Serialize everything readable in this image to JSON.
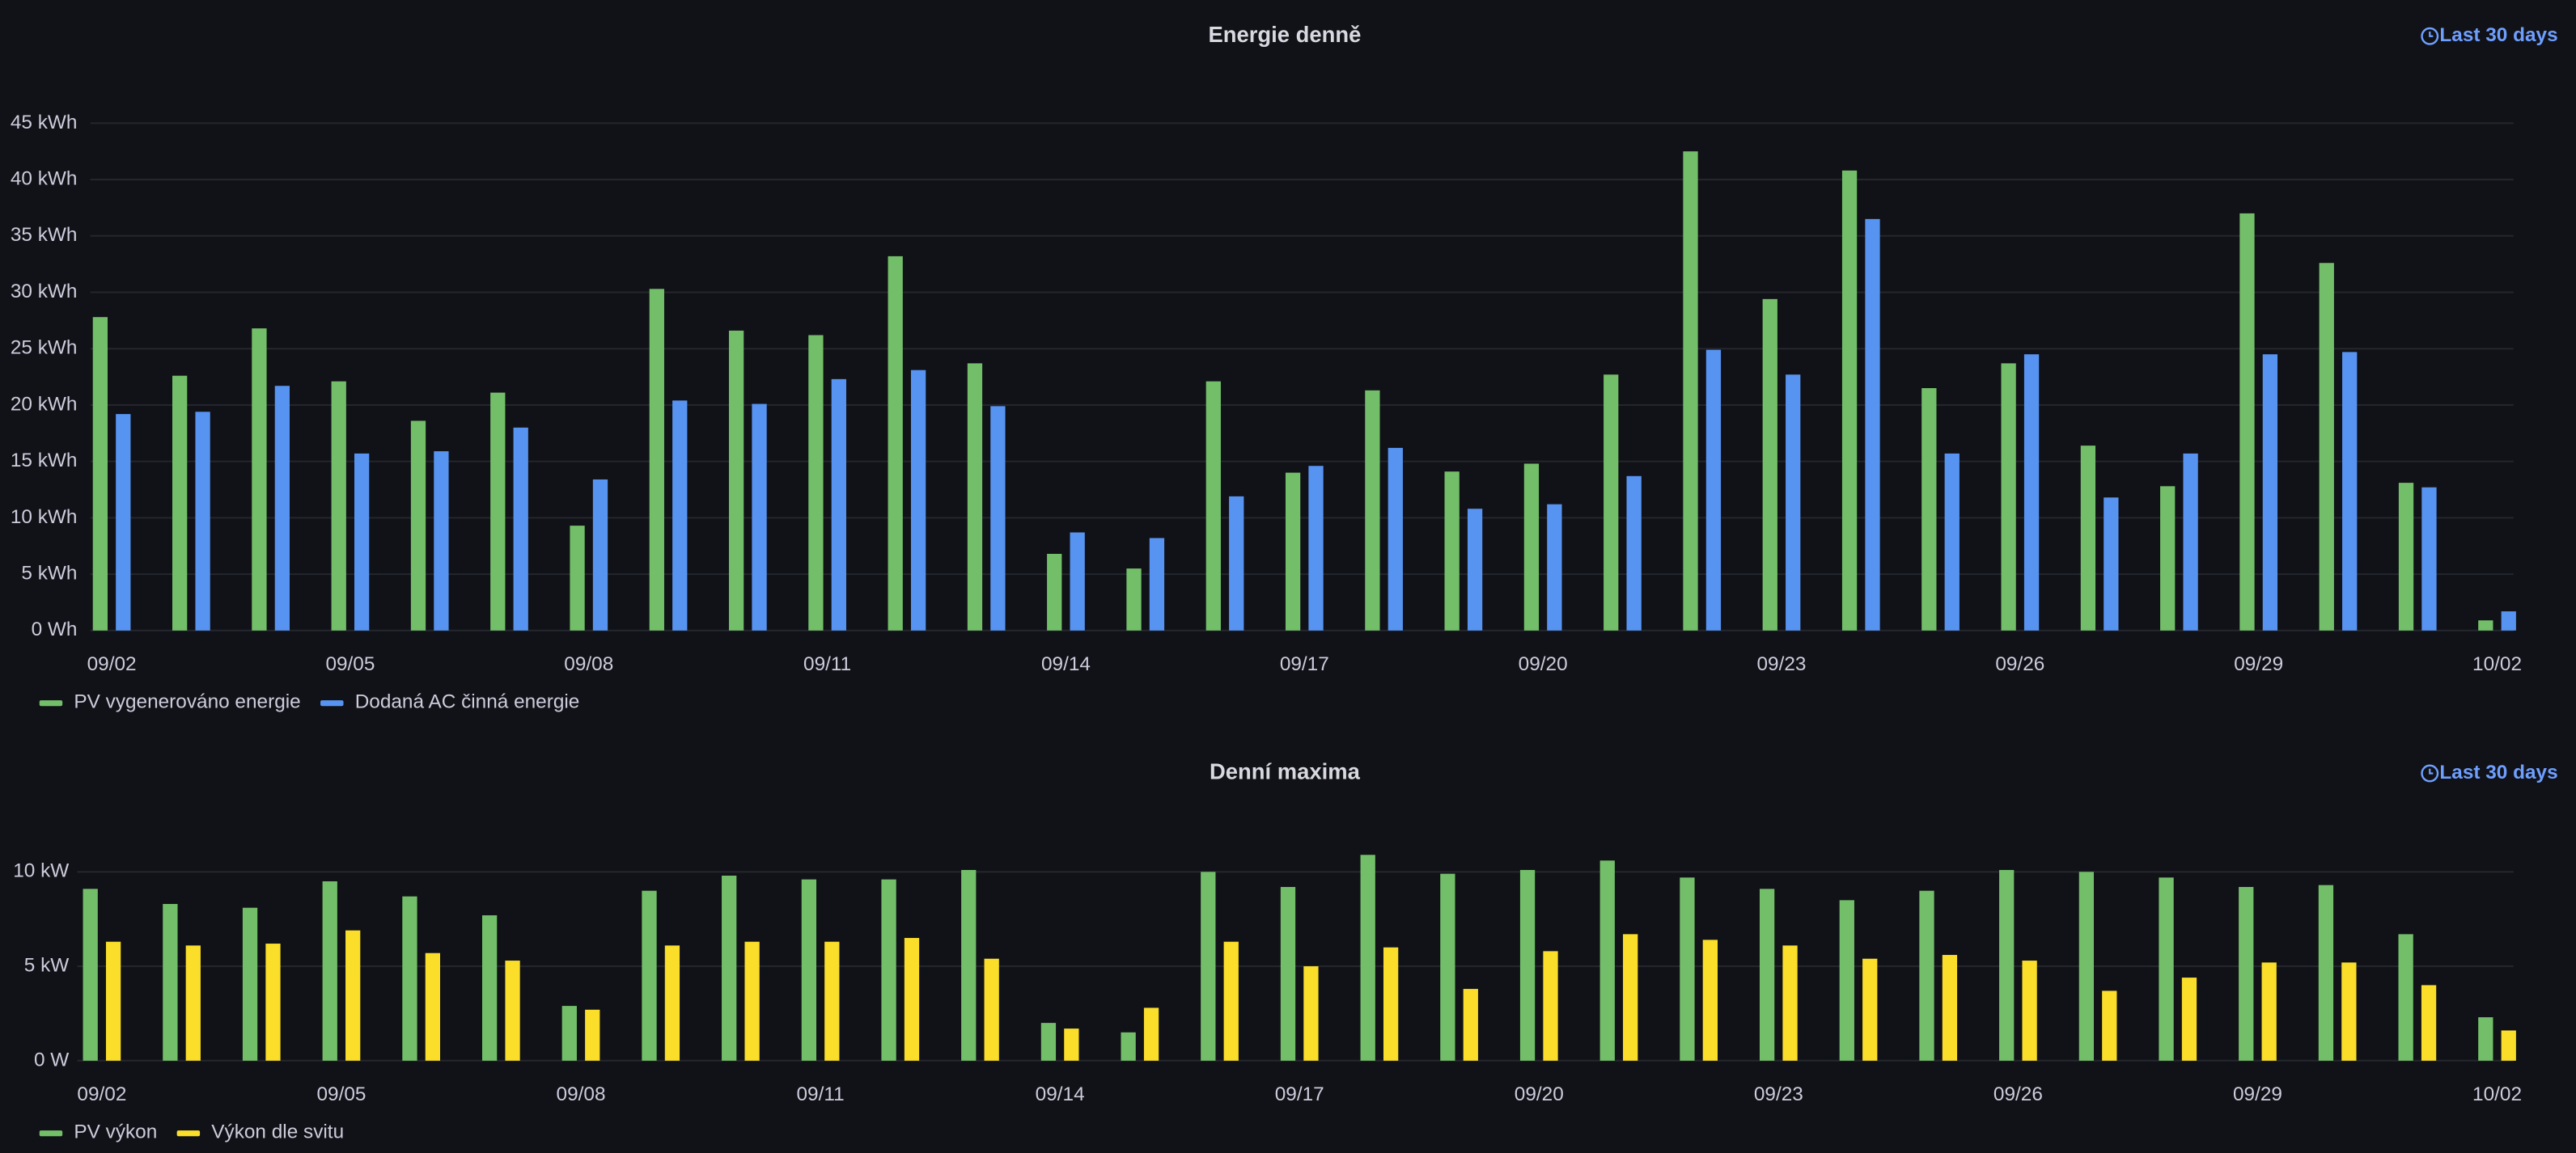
{
  "chart_data": [
    {
      "type": "bar",
      "title": "Energie denně",
      "time_range": "Last 30 days",
      "categories": [
        "09/02",
        null,
        null,
        "09/05",
        null,
        null,
        "09/08",
        null,
        null,
        "09/11",
        null,
        null,
        "09/14",
        null,
        null,
        "09/17",
        null,
        null,
        "09/20",
        null,
        null,
        "09/23",
        null,
        null,
        "09/26",
        null,
        null,
        "09/29",
        null,
        null,
        "10/02"
      ],
      "series": [
        {
          "name": "PV vygenerováno energie",
          "color": "#73bf69",
          "values": [
            27.8,
            22.6,
            26.8,
            22.1,
            18.6,
            21.1,
            9.3,
            30.3,
            26.6,
            26.2,
            33.2,
            23.7,
            6.8,
            5.5,
            22.1,
            14.0,
            21.3,
            14.1,
            14.8,
            22.7,
            42.5,
            29.4,
            40.8,
            21.5,
            23.7,
            16.4,
            12.8,
            37.0,
            32.6,
            13.1,
            0.9
          ]
        },
        {
          "name": "Dodaná AC činná energie",
          "color": "#5794f2",
          "values": [
            19.2,
            19.4,
            21.7,
            15.7,
            15.9,
            18.0,
            13.4,
            20.4,
            20.1,
            22.3,
            23.1,
            19.9,
            8.7,
            8.2,
            11.9,
            14.6,
            16.2,
            10.8,
            11.2,
            13.7,
            24.9,
            22.7,
            36.5,
            15.7,
            24.5,
            11.8,
            15.7,
            24.5,
            24.7,
            12.7,
            1.7
          ]
        }
      ],
      "ylim": [
        0,
        45
      ],
      "yticks": [
        {
          "value": 0,
          "label": "0 Wh"
        },
        {
          "value": 5,
          "label": "5 kWh"
        },
        {
          "value": 10,
          "label": "10 kWh"
        },
        {
          "value": 15,
          "label": "15 kWh"
        },
        {
          "value": 20,
          "label": "20 kWh"
        },
        {
          "value": 25,
          "label": "25 kWh"
        },
        {
          "value": 30,
          "label": "30 kWh"
        },
        {
          "value": 35,
          "label": "35 kWh"
        },
        {
          "value": 40,
          "label": "40 kWh"
        },
        {
          "value": 45,
          "label": "45 kWh"
        }
      ],
      "grid": true,
      "legend": "bottom-left"
    },
    {
      "type": "bar",
      "title": "Denní maxima",
      "time_range": "Last 30 days",
      "categories": [
        "09/02",
        null,
        null,
        "09/05",
        null,
        null,
        "09/08",
        null,
        null,
        "09/11",
        null,
        null,
        "09/14",
        null,
        null,
        "09/17",
        null,
        null,
        "09/20",
        null,
        null,
        "09/23",
        null,
        null,
        "09/26",
        null,
        null,
        "09/29",
        null,
        null,
        "10/02"
      ],
      "series": [
        {
          "name": "PV výkon",
          "color": "#73bf69",
          "values": [
            9.1,
            8.3,
            8.1,
            9.5,
            8.7,
            7.7,
            2.9,
            9.0,
            9.8,
            9.6,
            9.6,
            10.1,
            2.0,
            1.5,
            10.0,
            9.2,
            10.9,
            9.9,
            10.1,
            10.6,
            9.7,
            9.1,
            8.5,
            9.0,
            10.1,
            10.0,
            9.7,
            9.2,
            9.3,
            6.7,
            2.3
          ]
        },
        {
          "name": "Výkon dle svitu",
          "color": "#fade2a",
          "values": [
            6.3,
            6.1,
            6.2,
            6.9,
            5.7,
            5.3,
            2.7,
            6.1,
            6.3,
            6.3,
            6.5,
            5.4,
            1.7,
            2.8,
            6.3,
            5.0,
            6.0,
            3.8,
            5.8,
            6.7,
            6.4,
            6.1,
            5.4,
            5.6,
            5.3,
            3.7,
            4.4,
            5.2,
            5.2,
            4.0,
            1.6
          ]
        }
      ],
      "ylim": [
        0,
        11.5
      ],
      "yticks": [
        {
          "value": 0,
          "label": "0 W"
        },
        {
          "value": 5,
          "label": "5 kW"
        },
        {
          "value": 10,
          "label": "10 kW"
        }
      ],
      "grid": true,
      "legend": "bottom-left"
    }
  ]
}
